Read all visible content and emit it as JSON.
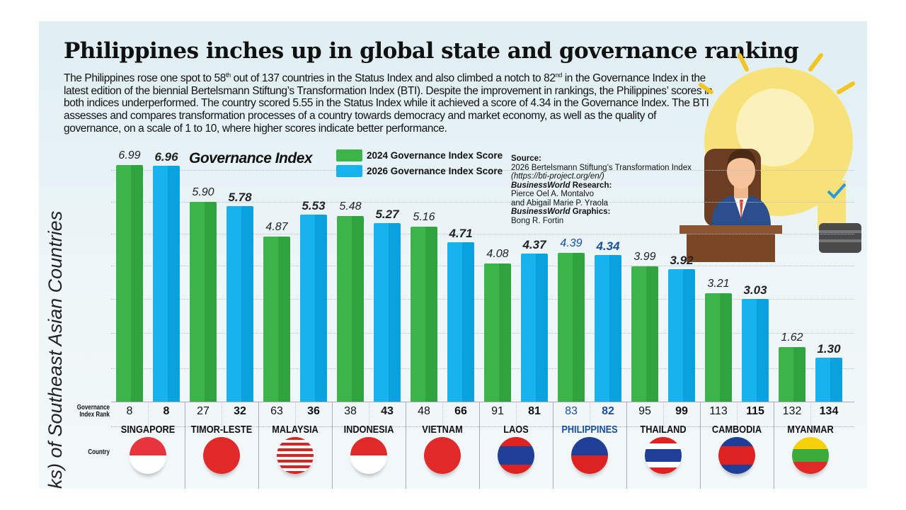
{
  "title": "Philippines inches up in global state and governance ranking",
  "intro": {
    "p1": "The Philippines rose one spot to 58",
    "s1": "th",
    "p2": " out of 137 countries in the Status Index and also climbed a notch to 82",
    "s2": "nd",
    "p3": " in the Governance Index in the latest edition of the biennial Bertelsmann Stiftung’s Transformation Index (BTI). Despite the improvement in rankings, the Philippines’ scores in both indices underperformed. The country scored 5.55 in the Status Index while it achieved a score of 4.34 in the Governance Index. The BTI assesses and compares transformation processes of a country towards democracy and market economy, as well as the quality of governance, on a scale of 1 to 10, where higher scores indicate better performance."
  },
  "source": {
    "label": "Source:",
    "text": "2026 Bertelsmann Stiftung’s Transformation Index",
    "url": "(https://bti-project.org/en/)",
    "research_brand": "BusinessWorld",
    "research_label": " Research:",
    "research_names": "Pierce Oel A. Montalvo",
    "research_names2": "and Abigail Marie P. Yraola",
    "graphics_brand": "BusinessWorld",
    "graphics_label": " Graphics:",
    "graphics_name": "Bong R. Fortin"
  },
  "row_labels": {
    "rank": "Governance Index Rank",
    "country": "Country"
  },
  "colors": {
    "green": "#3cb44a",
    "blue": "#17b3ee",
    "highlight": "#1a4fa0"
  },
  "chart_data": {
    "type": "bar",
    "title": "Governance Index",
    "ylabel": "ks) of Southeast Asian Countries",
    "ylim": [
      0,
      7
    ],
    "grid": true,
    "legend_placement": "top",
    "categories": [
      "SINGAPORE",
      "TIMOR-LESTE",
      "MALAYSIA",
      "INDONESIA",
      "VIETNAM",
      "LAOS",
      "PHILIPPINES",
      "THAILAND",
      "CAMBODIA",
      "MYANMAR"
    ],
    "highlight": "PHILIPPINES",
    "series": [
      {
        "name": "2024 Governance Index Score",
        "values": [
          6.99,
          5.9,
          4.87,
          5.48,
          5.16,
          4.08,
          4.39,
          3.99,
          3.21,
          1.62
        ],
        "ranks": [
          8,
          27,
          63,
          38,
          48,
          91,
          83,
          95,
          113,
          132
        ]
      },
      {
        "name": "2026 Governance Index Score",
        "values": [
          6.96,
          5.78,
          5.53,
          5.27,
          4.71,
          4.37,
          4.34,
          3.92,
          3.03,
          1.3
        ],
        "ranks": [
          8,
          32,
          36,
          43,
          66,
          81,
          82,
          99,
          115,
          134
        ]
      }
    ],
    "value_labels": {
      "s2024": [
        "6.99",
        "5.90",
        "4.87",
        "5.48",
        "5.16",
        "4.08",
        "4.39",
        "3.99",
        "3.21",
        "1.62"
      ],
      "s2026": [
        "6.96",
        "5.78",
        "5.53",
        "5.27",
        "4.71",
        "4.37",
        "4.34",
        "3.92",
        "3.03",
        "1.30"
      ]
    }
  }
}
